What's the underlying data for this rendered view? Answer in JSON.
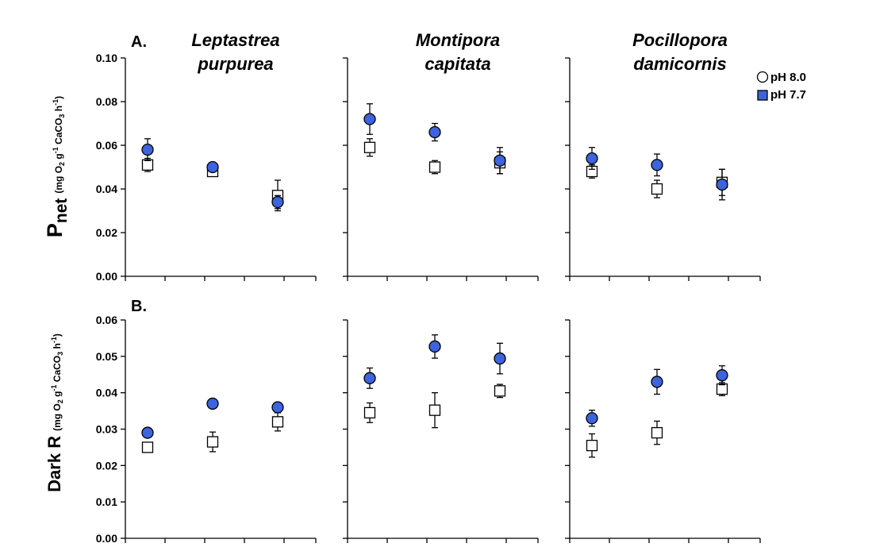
{
  "colors": {
    "filled": "#3d63dd",
    "open": "#ffffff",
    "stroke": "#000000"
  },
  "species": [
    "Leptastrea purpurea",
    "Montipora capitata",
    "Pocillopora damicornis"
  ],
  "legend": [
    {
      "label": "pH 8.0"
    },
    {
      "label": "pH 7.7"
    }
  ],
  "chart_data": [
    {
      "type": "scatter",
      "panel": "A.",
      "ylabel_main": "P",
      "ylabel_sub": "net",
      "ylabel_units": "(mg O2 g-1 CaCO3 h-1)",
      "ylim": [
        0,
        0.1
      ],
      "yticks": [
        "0.00",
        "0.02",
        "0.04",
        "0.06",
        "0.08",
        "0.10"
      ],
      "groups": [
        {
          "species": "Leptastrea purpurea",
          "open": [
            {
              "y": 0.051,
              "err": 0.003
            },
            {
              "y": 0.048,
              "err": 0.002
            },
            {
              "y": 0.037,
              "err": 0.007
            }
          ],
          "filled": [
            {
              "y": 0.058,
              "err": 0.005
            },
            {
              "y": 0.05,
              "err": 0.002
            },
            {
              "y": 0.034,
              "err": 0.003
            }
          ]
        },
        {
          "species": "Montipora capitata",
          "open": [
            {
              "y": 0.059,
              "err": 0.004
            },
            {
              "y": 0.05,
              "err": 0.003
            },
            {
              "y": 0.052,
              "err": 0.005
            }
          ],
          "filled": [
            {
              "y": 0.072,
              "err": 0.007
            },
            {
              "y": 0.066,
              "err": 0.004
            },
            {
              "y": 0.053,
              "err": 0.006
            }
          ]
        },
        {
          "species": "Pocillopora damicornis",
          "open": [
            {
              "y": 0.048,
              "err": 0.003
            },
            {
              "y": 0.04,
              "err": 0.004
            },
            {
              "y": 0.043,
              "err": 0.006
            }
          ],
          "filled": [
            {
              "y": 0.054,
              "err": 0.005
            },
            {
              "y": 0.051,
              "err": 0.005
            },
            {
              "y": 0.042,
              "err": 0.007
            }
          ]
        }
      ]
    },
    {
      "type": "scatter",
      "panel": "B.",
      "ylabel_main": "Dark R",
      "ylabel_units": "(mg O2 g-1 CaCO3 h-1)",
      "ylim": [
        0,
        0.06
      ],
      "yticks": [
        "0.00",
        "0.01",
        "0.02",
        "0.03",
        "0.04",
        "0.05",
        "0.06"
      ],
      "groups": [
        {
          "species": "Leptastrea purpurea",
          "open": [
            {
              "y": 0.025,
              "err": 0.001
            },
            {
              "y": 0.0265,
              "err": 0.0027
            },
            {
              "y": 0.032,
              "err": 0.0025
            }
          ],
          "filled": [
            {
              "y": 0.029,
              "err": 0.0005
            },
            {
              "y": 0.037,
              "err": 0.0012
            },
            {
              "y": 0.036,
              "err": 0.0012
            }
          ]
        },
        {
          "species": "Montipora capitata",
          "open": [
            {
              "y": 0.0345,
              "err": 0.0027
            },
            {
              "y": 0.0352,
              "err": 0.0048
            },
            {
              "y": 0.0405,
              "err": 0.0018
            }
          ],
          "filled": [
            {
              "y": 0.044,
              "err": 0.0028
            },
            {
              "y": 0.0527,
              "err": 0.0032
            },
            {
              "y": 0.0494,
              "err": 0.0042
            }
          ]
        },
        {
          "species": "Pocillopora damicornis",
          "open": [
            {
              "y": 0.0255,
              "err": 0.0032
            },
            {
              "y": 0.029,
              "err": 0.0032
            },
            {
              "y": 0.041,
              "err": 0.0018
            }
          ],
          "filled": [
            {
              "y": 0.033,
              "err": 0.0022
            },
            {
              "y": 0.043,
              "err": 0.0034
            },
            {
              "y": 0.0448,
              "err": 0.0026
            }
          ]
        }
      ]
    }
  ]
}
